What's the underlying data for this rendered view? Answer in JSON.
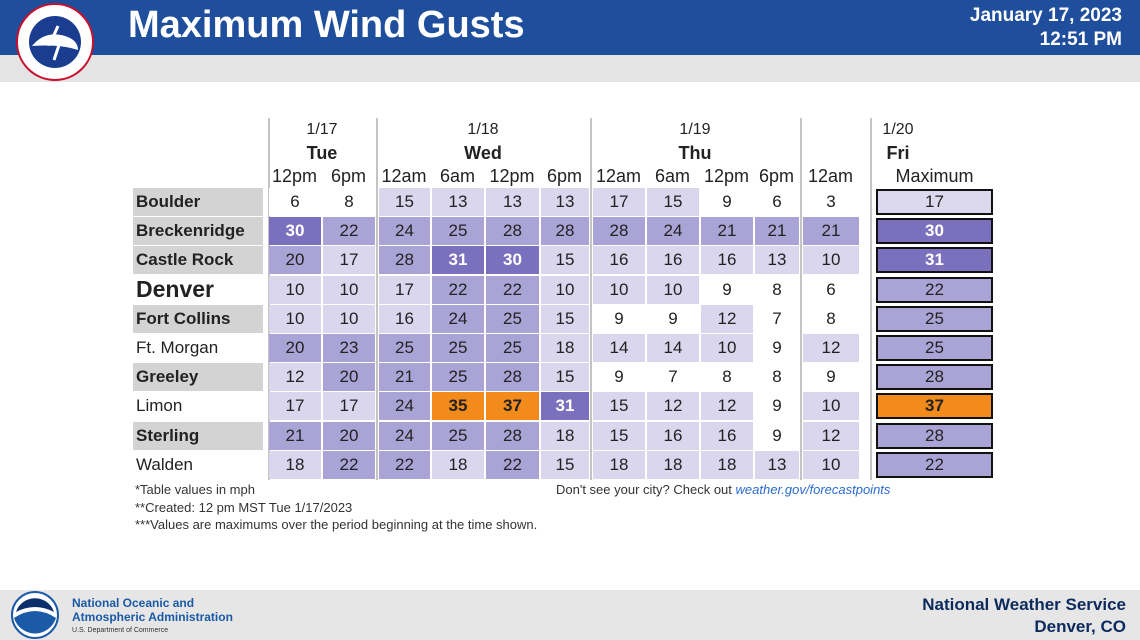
{
  "header": {
    "title": "Maximum Wind Gusts",
    "date": "January 17, 2023",
    "time": "12:51 PM"
  },
  "table": {
    "date_groups": [
      {
        "date": "1/17",
        "day": "Tue"
      },
      {
        "date": "1/18",
        "day": "Wed"
      },
      {
        "date": "1/19",
        "day": "Thu"
      },
      {
        "date": "1/20",
        "day": "Fri"
      }
    ],
    "columns": [
      "12pm",
      "6pm",
      "12am",
      "6am",
      "12pm",
      "6pm",
      "12am",
      "6am",
      "12pm",
      "6pm",
      "12am"
    ],
    "max_header": "Maximum",
    "rows": [
      {
        "city": "Boulder",
        "values": [
          6,
          8,
          15,
          13,
          13,
          13,
          17,
          15,
          9,
          6,
          3
        ],
        "max": 17
      },
      {
        "city": "Breckenridge",
        "values": [
          30,
          22,
          24,
          25,
          28,
          28,
          28,
          24,
          21,
          21,
          21
        ],
        "max": 30
      },
      {
        "city": "Castle Rock",
        "values": [
          20,
          17,
          28,
          31,
          30,
          15,
          16,
          16,
          16,
          13,
          10
        ],
        "max": 31
      },
      {
        "city": "Denver",
        "values": [
          10,
          10,
          17,
          22,
          22,
          10,
          10,
          10,
          9,
          8,
          6
        ],
        "max": 22
      },
      {
        "city": "Fort Collins",
        "values": [
          10,
          10,
          16,
          24,
          25,
          15,
          9,
          9,
          12,
          7,
          8
        ],
        "max": 25
      },
      {
        "city": "Ft. Morgan",
        "values": [
          20,
          23,
          25,
          25,
          25,
          18,
          14,
          14,
          10,
          9,
          12
        ],
        "max": 25
      },
      {
        "city": "Greeley",
        "values": [
          12,
          20,
          21,
          25,
          28,
          15,
          9,
          7,
          8,
          8,
          9
        ],
        "max": 28
      },
      {
        "city": "Limon",
        "values": [
          17,
          17,
          24,
          35,
          37,
          31,
          15,
          12,
          12,
          9,
          10
        ],
        "max": 37
      },
      {
        "city": "Sterling",
        "values": [
          21,
          20,
          24,
          25,
          28,
          18,
          15,
          16,
          16,
          9,
          12
        ],
        "max": 28
      },
      {
        "city": "Walden",
        "values": [
          18,
          22,
          22,
          18,
          22,
          15,
          18,
          18,
          18,
          13,
          10
        ],
        "max": 22
      }
    ]
  },
  "notes": [
    "*Table values in mph",
    "**Created: 12 pm MST Tue 1/17/2023",
    "***Values are maximums over the period beginning at the time shown."
  ],
  "prompt": "Don't see your city? Check out",
  "link": "weather.gov/forecastpoints",
  "footer": {
    "noaa_line1": "National Oceanic and",
    "noaa_line2": "Atmospheric Administration",
    "noaa_dept": "U.S. Department of Commerce",
    "office": "National Weather Service",
    "location": "Denver, CO"
  }
}
